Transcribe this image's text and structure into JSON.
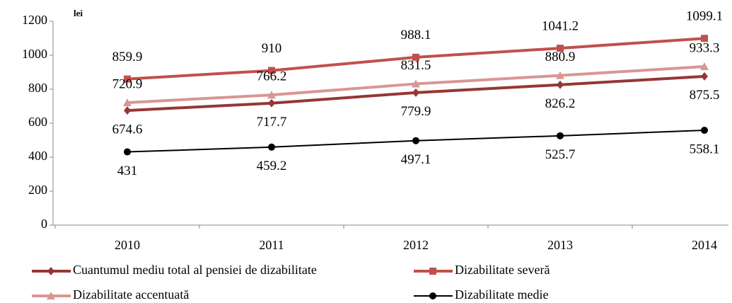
{
  "chart_data": {
    "type": "line",
    "y_unit_label": "lei",
    "categories": [
      "2010",
      "2011",
      "2012",
      "2013",
      "2014"
    ],
    "ylim": [
      0,
      1200
    ],
    "yticks": [
      0,
      200,
      400,
      600,
      800,
      1000,
      1200
    ],
    "grid": false,
    "series": [
      {
        "name": "Cuantumul mediu total al pensiei de dizabilitate",
        "color": "#953735",
        "marker": "diamond",
        "values": [
          674.6,
          717.7,
          779.9,
          826.2,
          875.5
        ]
      },
      {
        "name": "Dizabilitate severă",
        "color": "#c0504d",
        "marker": "square",
        "values": [
          859.9,
          910,
          988.1,
          1041.2,
          1099.1
        ]
      },
      {
        "name": "Dizabilitate accentuată",
        "color": "#d99694",
        "marker": "triangle",
        "values": [
          720.9,
          766.2,
          831.5,
          880.9,
          933.3
        ]
      },
      {
        "name": "Dizabilitate medie",
        "color": "#000000",
        "marker": "circle",
        "values": [
          431,
          459.2,
          497.1,
          525.7,
          558.1
        ]
      }
    ]
  }
}
